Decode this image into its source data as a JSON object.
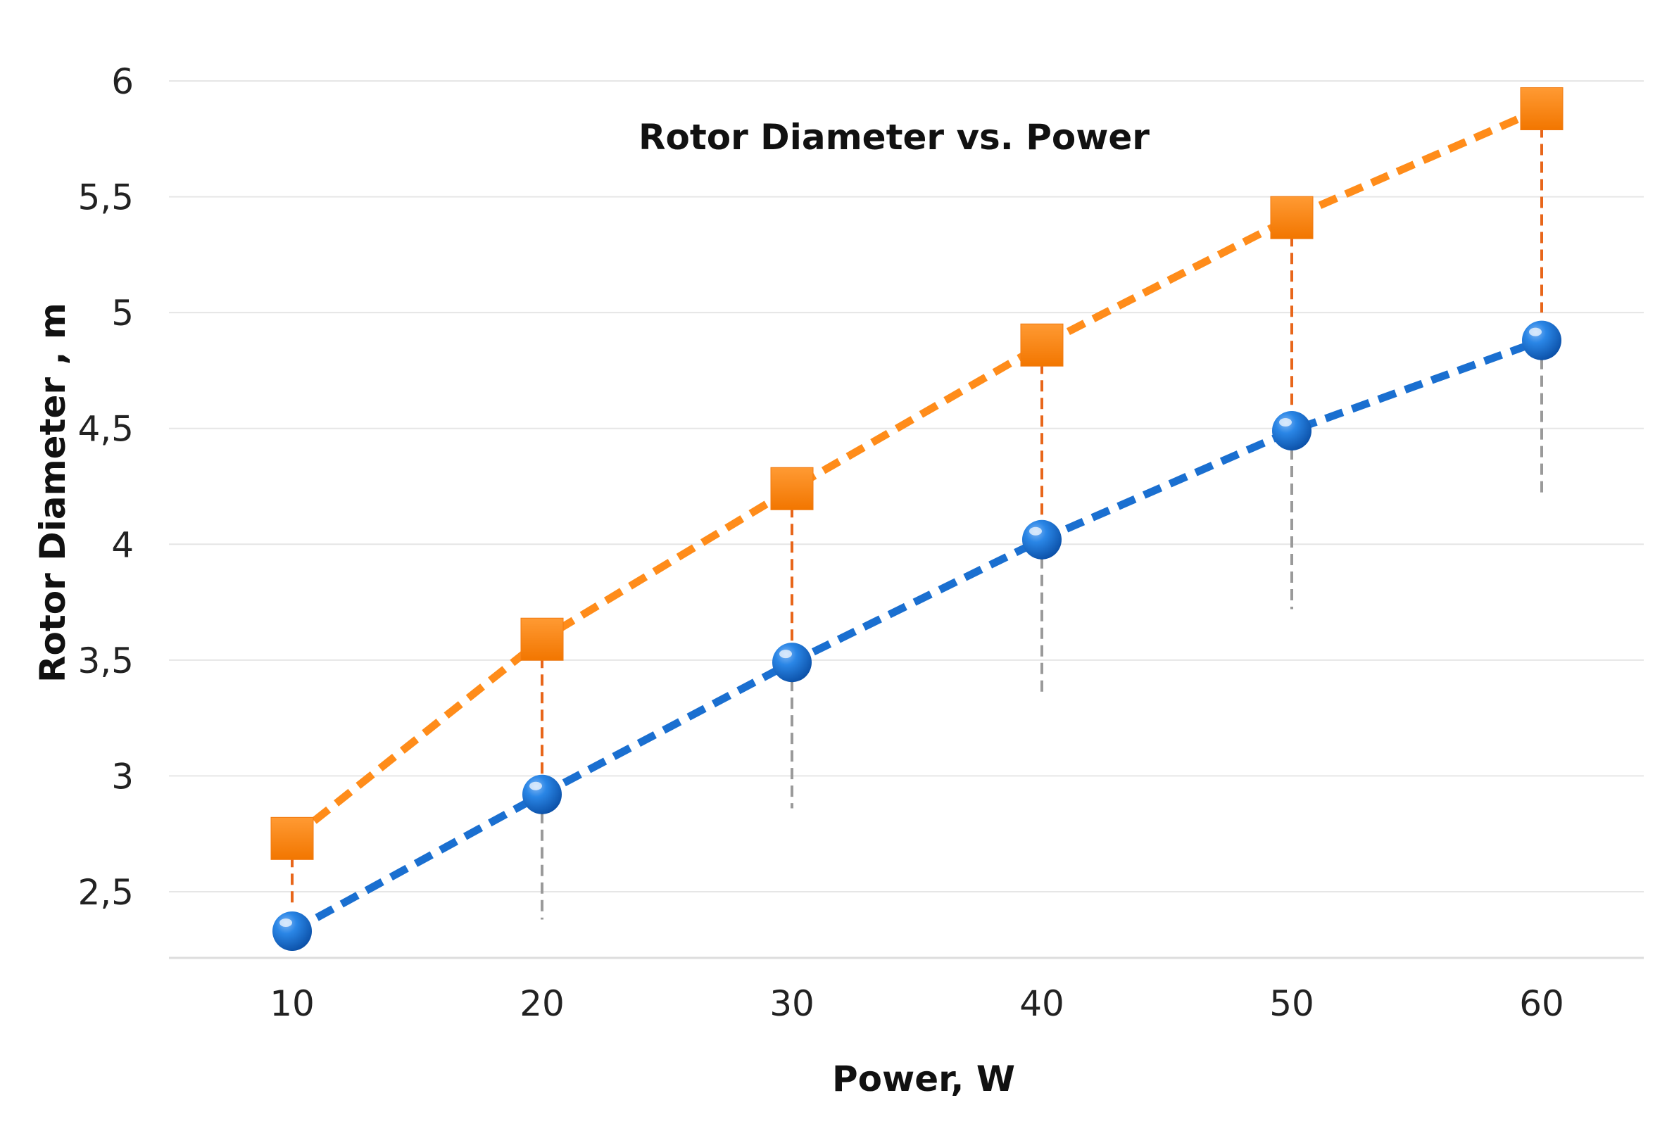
{
  "chart_data": {
    "type": "line",
    "title": "Rotor Diameter vs. Power",
    "xlabel": "Power, W",
    "ylabel": "Rotor Diameter , m",
    "x": [
      10,
      20,
      30,
      40,
      50,
      60
    ],
    "x_tick_labels": [
      "10",
      "20",
      "30",
      "40",
      "50",
      "60"
    ],
    "y_ticks": [
      2.5,
      3,
      3.5,
      4,
      4.5,
      5,
      5.5,
      6
    ],
    "y_tick_labels": [
      "2,5",
      "3",
      "3,5",
      "4",
      "4,5",
      "5",
      "5,5",
      "6"
    ],
    "ylim": [
      2.22,
      6
    ],
    "xlim": [
      5,
      65
    ],
    "grid": true,
    "legend": "none",
    "series": [
      {
        "marker": "square",
        "color": "#FF8C1A",
        "line_style": "dashed",
        "values": [
          2.73,
          3.59,
          4.24,
          4.86,
          5.41,
          5.88
        ],
        "error_low": [
          2.44,
          3.0,
          3.5,
          4.0,
          4.5,
          5.0
        ]
      },
      {
        "marker": "circle",
        "color": "#1A6FD0",
        "line_style": "dashed",
        "values": [
          2.33,
          2.92,
          3.49,
          4.02,
          4.49,
          4.88
        ],
        "error_low": [
          2.36,
          2.38,
          2.86,
          3.34,
          3.72,
          4.22
        ]
      }
    ]
  }
}
